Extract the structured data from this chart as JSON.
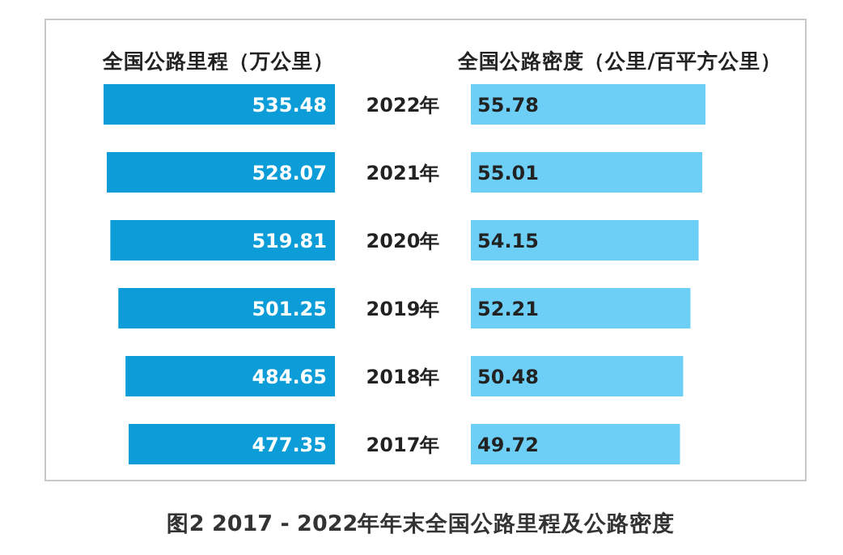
{
  "chart_data": [
    {
      "type": "bar",
      "orientation": "horizontal",
      "title": "全国公路里程（万公里）",
      "categories": [
        "2022年",
        "2021年",
        "2020年",
        "2019年",
        "2018年",
        "2017年"
      ],
      "values": [
        535.48,
        528.07,
        519.81,
        501.25,
        484.65,
        477.35
      ],
      "color": "#0c9dd8",
      "data_labels": true,
      "annotations": [
        "图2   2017 - 2022年年末全国公路里程及公路密度"
      ]
    },
    {
      "type": "bar",
      "orientation": "horizontal",
      "title": "全国公路密度（公里/百平方公里）",
      "categories": [
        null,
        null,
        null,
        null,
        null,
        null
      ],
      "values": [
        55.78,
        55.01,
        54.15,
        52.21,
        50.48,
        49.72
      ],
      "color": "#6dcff6",
      "data_labels": true
    }
  ]
}
